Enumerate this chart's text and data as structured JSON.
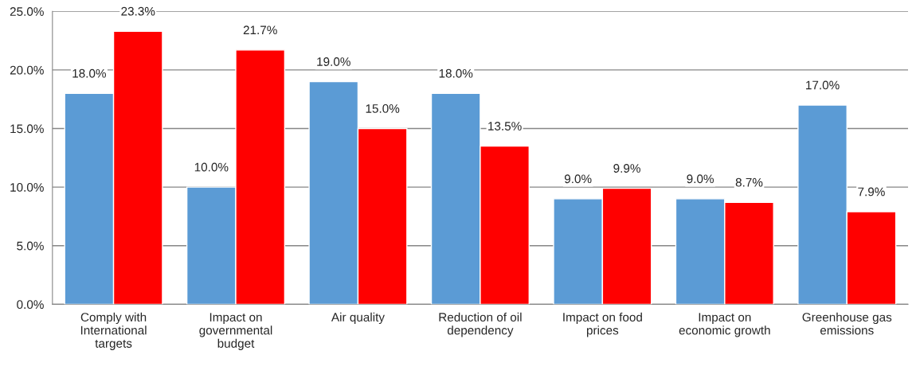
{
  "chart_data": {
    "type": "bar",
    "categories": [
      "Comply with\nInternational\ntargets",
      "Impact on\ngovernmental\nbudget",
      "Air quality",
      "Reduction of oil\ndependency",
      "Impact on food\nprices",
      "Impact on\neconomic growth",
      "Greenhouse gas\nemissions"
    ],
    "series": [
      {
        "color": "#5b9bd5",
        "values": [
          18.0,
          10.0,
          19.0,
          18.0,
          9.0,
          9.0,
          17.0
        ],
        "value_labels": [
          "18.0%",
          "10.0%",
          "19.0%",
          "18.0%",
          "9.0%",
          "9.0%",
          "17.0%"
        ]
      },
      {
        "color": "#ff0000",
        "values": [
          23.3,
          21.7,
          15.0,
          13.5,
          9.9,
          8.7,
          7.9
        ],
        "value_labels": [
          "23.3%",
          "21.7%",
          "15.0%",
          "13.5%",
          "9.9%",
          "8.7%",
          "7.9%"
        ]
      }
    ],
    "ylim": [
      0,
      25
    ],
    "yticks": [
      {
        "value": 0,
        "label": "0.0%"
      },
      {
        "value": 5,
        "label": "5.0%"
      },
      {
        "value": 10,
        "label": "10.0%"
      },
      {
        "value": 15,
        "label": "15.0%"
      },
      {
        "value": 20,
        "label": "20.0%"
      },
      {
        "value": 25,
        "label": "25.0%"
      }
    ],
    "grid": "y",
    "legend": false
  }
}
